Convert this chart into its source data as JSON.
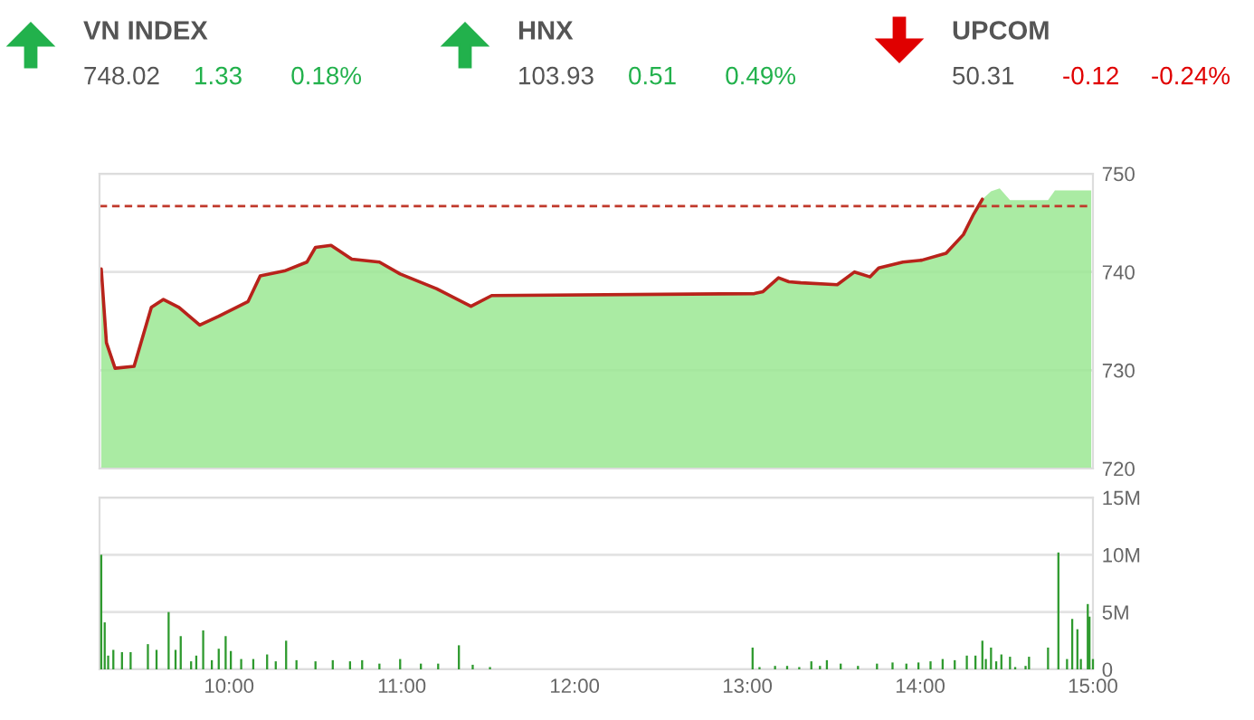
{
  "chart_data": [
    {
      "type": "other",
      "categories": [
        "VN INDEX",
        "HNX",
        "UPCOM"
      ],
      "values": [
        1.33,
        0.51,
        -0.12
      ],
      "value_labels": [
        "1.33",
        "0.51",
        "-0.12"
      ],
      "annotations": [
        "748.02",
        "103.93",
        "50.31",
        "0.18%",
        "0.49%",
        "-0.24%"
      ],
      "colors": [
        "#22b14c",
        "#22b14c",
        "#e00000"
      ]
    },
    {
      "type": "area",
      "xlim": [
        9.25,
        15.0
      ],
      "ylim": [
        720,
        750
      ],
      "yticks": [
        720,
        730,
        740,
        750
      ],
      "tick_labels": "y",
      "grid": "y",
      "x": [
        9.26,
        9.29,
        9.34,
        9.45,
        9.55,
        9.62,
        9.71,
        9.83,
        9.94,
        10.11,
        10.18,
        10.32,
        10.45,
        10.5,
        10.59,
        10.71,
        10.87,
        10.99,
        11.2,
        11.4,
        11.52,
        13.04,
        13.09,
        13.18,
        13.24,
        13.31,
        13.52,
        13.62,
        13.71,
        13.76,
        13.9,
        14.01,
        14.15,
        14.25,
        14.31,
        14.36,
        14.41,
        14.46,
        14.52,
        14.74,
        14.78,
        14.99
      ],
      "series": [
        {
          "type": "area",
          "color": "#9be893",
          "values": [
            740.3,
            732.8,
            730.2,
            730.4,
            736.4,
            737.2,
            736.4,
            734.6,
            735.5,
            737.0,
            739.6,
            740.1,
            741.0,
            742.5,
            742.7,
            741.3,
            741.0,
            739.8,
            738.3,
            736.5,
            737.6,
            737.8,
            738.0,
            739.4,
            739.0,
            738.9,
            738.7,
            740.0,
            739.5,
            740.4,
            741.0,
            741.2,
            741.9,
            743.8,
            745.9,
            747.4,
            748.2,
            748.5,
            747.3,
            747.3,
            748.3,
            748.3
          ]
        },
        {
          "type": "line",
          "color": "#b8231b",
          "values": [
            740.3,
            732.8,
            730.2,
            730.4,
            736.4,
            737.2,
            736.4,
            734.6,
            735.5,
            737.0,
            739.6,
            740.1,
            741.0,
            742.5,
            742.7,
            741.3,
            741.0,
            739.8,
            738.3,
            736.5,
            737.6,
            737.8,
            738.0,
            739.4,
            739.0,
            738.9,
            738.7,
            740.0,
            739.5,
            740.4,
            741.0,
            741.2,
            741.9,
            743.8,
            745.9,
            747.4,
            null,
            null,
            null,
            null,
            null,
            null
          ]
        }
      ],
      "ref_lines": [
        {
          "axis": "y",
          "value": 746.7,
          "color": "#c0392b",
          "line_style": "dashed"
        }
      ]
    },
    {
      "type": "bar",
      "xlim": [
        9.25,
        15.0
      ],
      "ylim": [
        0,
        15
      ],
      "grid": "y",
      "color": "#2e9a2e",
      "yticks": [
        0,
        {
          "value": 5,
          "label": "5M"
        },
        {
          "value": 10,
          "label": "10M"
        },
        {
          "value": 15,
          "label": "15M"
        }
      ],
      "xticks": [
        {
          "value": 10,
          "label": "10:00"
        },
        {
          "value": 11,
          "label": "11:00"
        },
        {
          "value": 12,
          "label": "12:00"
        },
        {
          "value": 13,
          "label": "13:00"
        },
        {
          "value": 14,
          "label": "14:00"
        },
        {
          "value": 15,
          "label": "15:00"
        }
      ],
      "x": [
        9.26,
        9.28,
        9.3,
        9.33,
        9.38,
        9.43,
        9.53,
        9.58,
        9.65,
        9.69,
        9.72,
        9.78,
        9.81,
        9.85,
        9.9,
        9.94,
        9.98,
        10.01,
        10.07,
        10.14,
        10.22,
        10.27,
        10.33,
        10.39,
        10.5,
        10.6,
        10.7,
        10.77,
        10.87,
        10.99,
        11.11,
        11.21,
        11.33,
        11.41,
        11.51,
        13.03,
        13.07,
        13.16,
        13.23,
        13.3,
        13.37,
        13.42,
        13.46,
        13.54,
        13.64,
        13.75,
        13.84,
        13.92,
        13.99,
        14.06,
        14.13,
        14.2,
        14.27,
        14.32,
        14.36,
        14.38,
        14.41,
        14.44,
        14.47,
        14.52,
        14.55,
        14.61,
        14.63,
        14.74,
        14.8,
        14.85,
        14.88,
        14.91,
        14.93,
        14.97,
        14.98,
        15.0
      ],
      "values": [
        10.0,
        4.1,
        1.2,
        1.7,
        1.5,
        1.5,
        2.2,
        1.7,
        5.0,
        1.7,
        2.9,
        0.7,
        1.2,
        3.4,
        0.8,
        1.8,
        2.9,
        1.6,
        0.9,
        0.9,
        1.3,
        0.7,
        2.5,
        0.8,
        0.7,
        0.8,
        0.7,
        0.8,
        0.5,
        0.9,
        0.5,
        0.5,
        2.1,
        0.4,
        0.2,
        1.9,
        0.2,
        0.3,
        0.3,
        0.2,
        0.7,
        0.3,
        0.8,
        0.5,
        0.3,
        0.5,
        0.6,
        0.5,
        0.6,
        0.7,
        0.9,
        0.8,
        1.2,
        1.2,
        2.5,
        0.9,
        1.9,
        0.7,
        1.3,
        1.1,
        0.2,
        0.3,
        1.1,
        1.9,
        10.2,
        0.9,
        4.4,
        3.5,
        0.9,
        5.7,
        4.6,
        0.9
      ]
    }
  ]
}
